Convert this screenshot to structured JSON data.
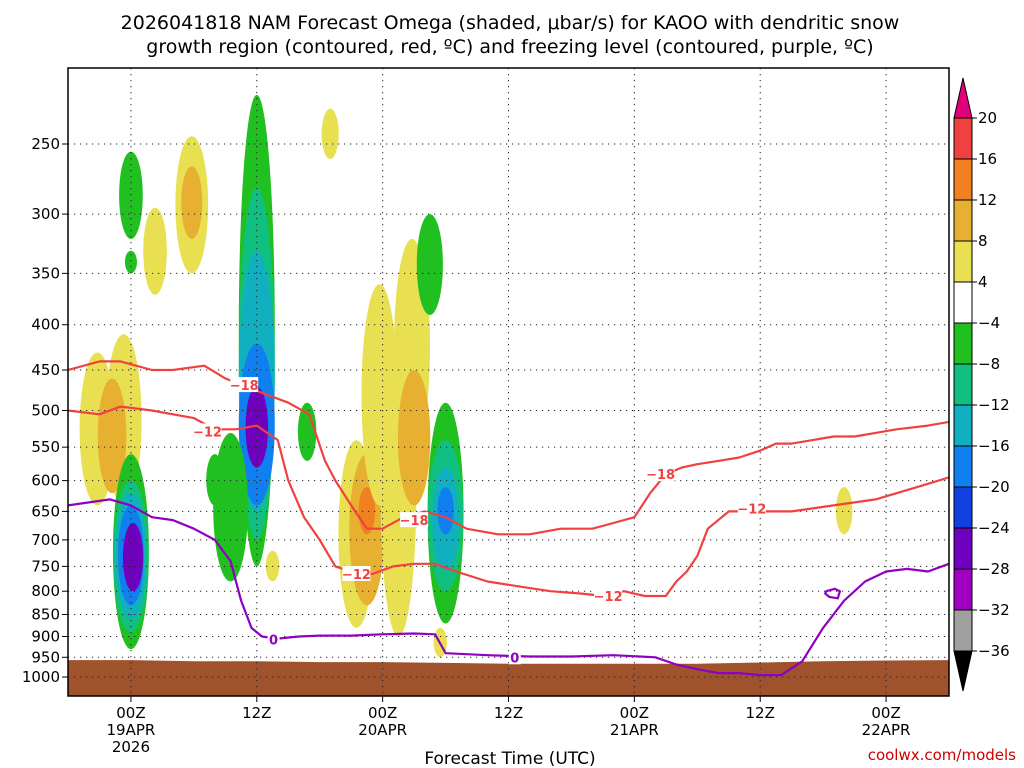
{
  "chart_data": {
    "type": "heatmap",
    "title": [
      "2026041818 NAM Forecast Omega (shaded, μbar/s) for KAOO with dendritic snow",
      "growth region (contoured, red, ºC) and freezing level (contoured, purple, ºC)"
    ],
    "xlabel": "Forecast Time (UTC)",
    "ylabel": "",
    "x_ticks": [
      {
        "hour": 6,
        "labels": [
          "00Z",
          "19APR",
          "2026"
        ]
      },
      {
        "hour": 18,
        "labels": [
          "12Z"
        ]
      },
      {
        "hour": 30,
        "labels": [
          "00Z",
          "20APR"
        ]
      },
      {
        "hour": 42,
        "labels": [
          "12Z"
        ]
      },
      {
        "hour": 54,
        "labels": [
          "00Z",
          "21APR"
        ]
      },
      {
        "hour": 66,
        "labels": [
          "12Z"
        ]
      },
      {
        "hour": 78,
        "labels": [
          "00Z",
          "22APR"
        ]
      }
    ],
    "xlim": [
      0,
      84
    ],
    "y_ticks": [
      250,
      300,
      350,
      400,
      450,
      500,
      550,
      600,
      650,
      700,
      750,
      800,
      850,
      900,
      950,
      1000
    ],
    "ylim": [
      1050,
      200
    ],
    "y_scale": "log-pressure",
    "grid": true,
    "surface": {
      "color": "#a0522d",
      "pressure": [
        957,
        957,
        960,
        960,
        962,
        962,
        964,
        966,
        966,
        966,
        966,
        963,
        960,
        958,
        957
      ],
      "hours": [
        0,
        6,
        12,
        18,
        24,
        30,
        36,
        42,
        48,
        54,
        60,
        66,
        72,
        78,
        84
      ]
    },
    "colorbar": {
      "labels": [
        "20",
        "16",
        "12",
        "8",
        "4",
        "-4",
        "-8",
        "-12",
        "-16",
        "-20",
        "-24",
        "-28",
        "-32",
        "-36"
      ],
      "colors": [
        "#e0007a",
        "#f04040",
        "#f08020",
        "#e8b030",
        "#e8e050",
        "#ffffff",
        "#20c020",
        "#10c080",
        "#10b0c0",
        "#1080f0",
        "#1040e0",
        "#7000c0",
        "#a000c0",
        "#a0a0a0",
        "#000000"
      ]
    },
    "omega_cells": [
      {
        "hour": 6.0,
        "p_top": 255,
        "p_bot": 320,
        "value": -8
      },
      {
        "hour": 6.0,
        "p_top": 330,
        "p_bot": 350,
        "value": -8
      },
      {
        "hour": 2.8,
        "p_top": 430,
        "p_bot": 640,
        "value": 4
      },
      {
        "hour": 5.3,
        "p_top": 410,
        "p_bot": 640,
        "value": 4
      },
      {
        "hour": 4.2,
        "p_top": 460,
        "p_bot": 620,
        "value": 8
      },
      {
        "hour": 8.3,
        "p_top": 295,
        "p_bot": 370,
        "value": 4
      },
      {
        "hour": 11.8,
        "p_top": 245,
        "p_bot": 350,
        "value": 4
      },
      {
        "hour": 11.8,
        "p_top": 265,
        "p_bot": 320,
        "value": 8
      },
      {
        "hour": 18.0,
        "p_top": 220,
        "p_bot": 750,
        "value": -8
      },
      {
        "hour": 18.0,
        "p_top": 280,
        "p_bot": 700,
        "value": -12
      },
      {
        "hour": 18.0,
        "p_top": 330,
        "p_bot": 650,
        "value": -16
      },
      {
        "hour": 18.0,
        "p_top": 420,
        "p_bot": 640,
        "value": -20
      },
      {
        "hour": 18.0,
        "p_top": 470,
        "p_bot": 580,
        "value": -28
      },
      {
        "hour": 15.5,
        "p_top": 530,
        "p_bot": 780,
        "value": -8
      },
      {
        "hour": 14.0,
        "p_top": 560,
        "p_bot": 640,
        "value": -8
      },
      {
        "hour": 22.8,
        "p_top": 490,
        "p_bot": 570,
        "value": -8
      },
      {
        "hour": 25.0,
        "p_top": 228,
        "p_bot": 260,
        "value": 4
      },
      {
        "hour": 27.5,
        "p_top": 540,
        "p_bot": 880,
        "value": 4
      },
      {
        "hour": 28.5,
        "p_top": 560,
        "p_bot": 830,
        "value": 8
      },
      {
        "hour": 28.5,
        "p_top": 610,
        "p_bot": 690,
        "value": 12
      },
      {
        "hour": 29.7,
        "p_top": 360,
        "p_bot": 640,
        "value": 4
      },
      {
        "hour": 31.5,
        "p_top": 420,
        "p_bot": 900,
        "value": 4
      },
      {
        "hour": 32.8,
        "p_top": 320,
        "p_bot": 560,
        "value": 4
      },
      {
        "hour": 33.0,
        "p_top": 450,
        "p_bot": 640,
        "value": 8
      },
      {
        "hour": 34.5,
        "p_top": 300,
        "p_bot": 390,
        "value": -8
      },
      {
        "hour": 36.0,
        "p_top": 490,
        "p_bot": 870,
        "value": -8
      },
      {
        "hour": 36.0,
        "p_top": 540,
        "p_bot": 800,
        "value": -12
      },
      {
        "hour": 36.0,
        "p_top": 580,
        "p_bot": 760,
        "value": -16
      },
      {
        "hour": 36.0,
        "p_top": 610,
        "p_bot": 690,
        "value": -20
      },
      {
        "hour": 6.0,
        "p_top": 560,
        "p_bot": 930,
        "value": -8
      },
      {
        "hour": 6.0,
        "p_top": 600,
        "p_bot": 890,
        "value": -12
      },
      {
        "hour": 6.0,
        "p_top": 620,
        "p_bot": 860,
        "value": -16
      },
      {
        "hour": 6.0,
        "p_top": 640,
        "p_bot": 830,
        "value": -20
      },
      {
        "hour": 6.2,
        "p_top": 670,
        "p_bot": 800,
        "value": -28
      },
      {
        "hour": 19.5,
        "p_top": 720,
        "p_bot": 780,
        "value": 4
      },
      {
        "hour": 35.5,
        "p_top": 880,
        "p_bot": 950,
        "value": 4
      },
      {
        "hour": 74.0,
        "p_top": 610,
        "p_bot": 690,
        "value": 4
      }
    ],
    "contours": [
      {
        "name": "dgz-top-18",
        "level": -18,
        "color": "#f04040",
        "label": "-18",
        "label_at": [
          17.0,
          460
        ],
        "hours": [
          0,
          3,
          5,
          8,
          10,
          13,
          15,
          17,
          19,
          21,
          23,
          24.5,
          25.5,
          27,
          28.5,
          30,
          32,
          34,
          36,
          38,
          41,
          44,
          47,
          50,
          52,
          54,
          55.5,
          57,
          58.5,
          60,
          62,
          64,
          66,
          67.5,
          69,
          71,
          73,
          75,
          77,
          79,
          82,
          84
        ],
        "p": [
          450,
          440,
          440,
          450,
          450,
          445,
          460,
          470,
          480,
          490,
          505,
          570,
          600,
          640,
          680,
          680,
          660,
          650,
          660,
          680,
          690,
          690,
          680,
          680,
          670,
          660,
          620,
          590,
          580,
          575,
          570,
          565,
          555,
          545,
          545,
          540,
          535,
          535,
          530,
          525,
          520,
          515
        ]
      },
      {
        "name": "dgz-bot-12",
        "level": -12,
        "color": "#f04040",
        "label": "-12",
        "label_at": [
          13.5,
          525
        ],
        "hours": [
          0,
          3,
          5,
          8,
          10,
          12,
          14,
          16,
          18,
          20,
          21,
          22.5,
          24,
          25.5,
          27,
          29,
          31,
          33,
          35,
          37,
          40,
          43,
          46,
          49,
          51,
          53,
          55,
          57,
          58,
          59,
          60,
          61,
          63,
          65,
          67,
          69,
          71,
          73,
          75,
          77,
          79,
          82,
          84
        ],
        "p": [
          500,
          505,
          495,
          500,
          505,
          510,
          525,
          525,
          520,
          540,
          600,
          660,
          700,
          750,
          760,
          765,
          750,
          745,
          745,
          760,
          780,
          790,
          800,
          805,
          810,
          800,
          810,
          810,
          780,
          760,
          730,
          680,
          650,
          650,
          650,
          650,
          645,
          640,
          635,
          630,
          620,
          605,
          595
        ]
      },
      {
        "name": "freezing-level-0",
        "level": 0,
        "color": "#9000c0",
        "label": "0",
        "label_at": [
          19.7,
          910
        ],
        "hours": [
          0,
          2,
          4,
          6,
          8,
          10,
          12,
          14,
          15.5,
          16.5,
          17.5,
          18.5,
          20,
          22,
          24,
          27,
          30,
          33,
          35,
          36,
          40,
          44,
          48,
          52,
          56,
          58,
          60,
          62,
          64,
          66,
          68,
          70,
          72,
          74,
          76,
          78,
          80,
          82,
          84
        ],
        "p": [
          640,
          635,
          630,
          640,
          660,
          665,
          680,
          700,
          740,
          820,
          880,
          900,
          905,
          900,
          898,
          898,
          895,
          893,
          895,
          940,
          945,
          948,
          948,
          945,
          950,
          968,
          980,
          990,
          990,
          995,
          995,
          960,
          880,
          820,
          780,
          760,
          755,
          760,
          745
        ]
      }
    ],
    "extra_contours": [
      {
        "name": "freezing-ring",
        "color": "#9000c0",
        "hours": [
          72.3,
          73.1,
          73.6,
          73.4,
          72.6,
          72.2,
          72.3
        ],
        "p": [
          800,
          795,
          800,
          815,
          812,
          805,
          800
        ]
      }
    ],
    "inline_labels": [
      {
        "name": "label-dgz-top-left",
        "text": "-18",
        "hour": 16.8,
        "p": 468
      },
      {
        "name": "label-dgz-bot-left",
        "text": "-12",
        "hour": 13.3,
        "p": 528
      },
      {
        "name": "label-dgz-top-mid",
        "text": "-18",
        "hour": 33.0,
        "p": 665
      },
      {
        "name": "label-dgz-bot-mid",
        "text": "-12",
        "hour": 27.5,
        "p": 765
      },
      {
        "name": "label-dgz-bot-right",
        "text": "-12",
        "hour": 51.5,
        "p": 810
      },
      {
        "name": "label-dgz-top-right",
        "text": "-18",
        "hour": 56.5,
        "p": 590
      },
      {
        "name": "label-dgz-bot-far",
        "text": "-12",
        "hour": 65.2,
        "p": 645
      },
      {
        "name": "label-frz-left",
        "text": "0",
        "hour": 19.6,
        "p": 907
      },
      {
        "name": "label-frz-mid",
        "text": "0",
        "hour": 42.6,
        "p": 950
      }
    ]
  },
  "branding": {
    "site": "coolwx.com/models"
  }
}
